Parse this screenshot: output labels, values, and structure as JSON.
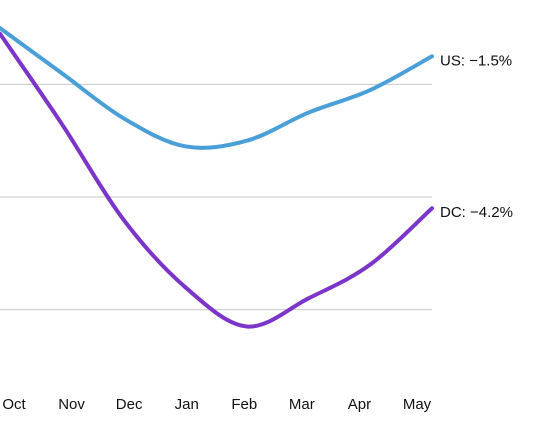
{
  "chart_data": {
    "type": "line",
    "categories": [
      "Oct",
      "Nov",
      "Dec",
      "Jan",
      "Feb",
      "Mar",
      "Apr",
      "May"
    ],
    "series": [
      {
        "name": "US",
        "end_label": "US: −1.5%",
        "color": "#4a9fd8",
        "values": [
          -1.0,
          -1.8,
          -2.6,
          -3.1,
          -3.0,
          -2.5,
          -2.1,
          -1.5
        ]
      },
      {
        "name": "DC",
        "end_label": "DC: −4.2%",
        "color": "#7b35c9",
        "values": [
          -1.1,
          -2.7,
          -4.4,
          -5.6,
          -6.3,
          -5.8,
          -5.2,
          -4.2
        ]
      }
    ],
    "ylim": [
      -7.5,
      -0.5
    ],
    "yticks": [
      -6,
      -4,
      -2
    ],
    "grid": true
  }
}
